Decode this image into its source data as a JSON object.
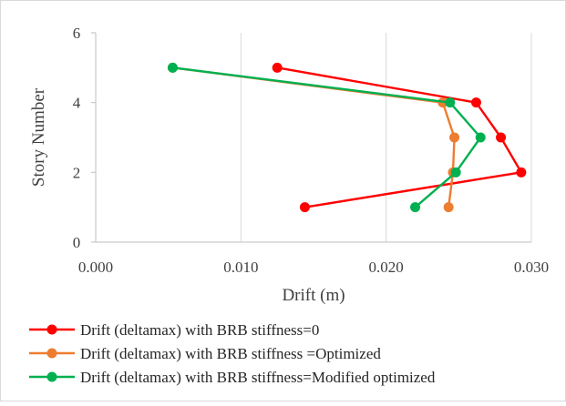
{
  "chart_data": {
    "type": "scatter",
    "title": "",
    "xlabel": "Drift (m)",
    "ylabel": "Story Number",
    "xlim": [
      0.0,
      0.03
    ],
    "ylim": [
      0,
      6
    ],
    "x_ticks": [
      "0.000",
      "0.010",
      "0.020",
      "0.030"
    ],
    "y_ticks": [
      "0",
      "2",
      "4",
      "6"
    ],
    "grid": "vertical",
    "legend_position": "bottom",
    "series": [
      {
        "name": "Drift (deltamax) with BRB stiffness=0",
        "color": "#ff0000",
        "points": [
          {
            "x": 0.0144,
            "y": 1
          },
          {
            "x": 0.0293,
            "y": 2
          },
          {
            "x": 0.0279,
            "y": 3
          },
          {
            "x": 0.0262,
            "y": 4
          },
          {
            "x": 0.0125,
            "y": 5
          }
        ]
      },
      {
        "name": "Drift (deltamax) with BRB stiffness =Optimized",
        "color": "#ed7d31",
        "points": [
          {
            "x": 0.0243,
            "y": 1
          },
          {
            "x": 0.0246,
            "y": 2
          },
          {
            "x": 0.0247,
            "y": 3
          },
          {
            "x": 0.0239,
            "y": 4
          },
          {
            "x": 0.0053,
            "y": 5
          }
        ]
      },
      {
        "name": "Drift (deltamax) with BRB stiffness=Modified optimized",
        "color": "#00b050",
        "points": [
          {
            "x": 0.022,
            "y": 1
          },
          {
            "x": 0.0248,
            "y": 2
          },
          {
            "x": 0.0265,
            "y": 3
          },
          {
            "x": 0.0244,
            "y": 4
          },
          {
            "x": 0.0053,
            "y": 5
          }
        ]
      }
    ]
  }
}
